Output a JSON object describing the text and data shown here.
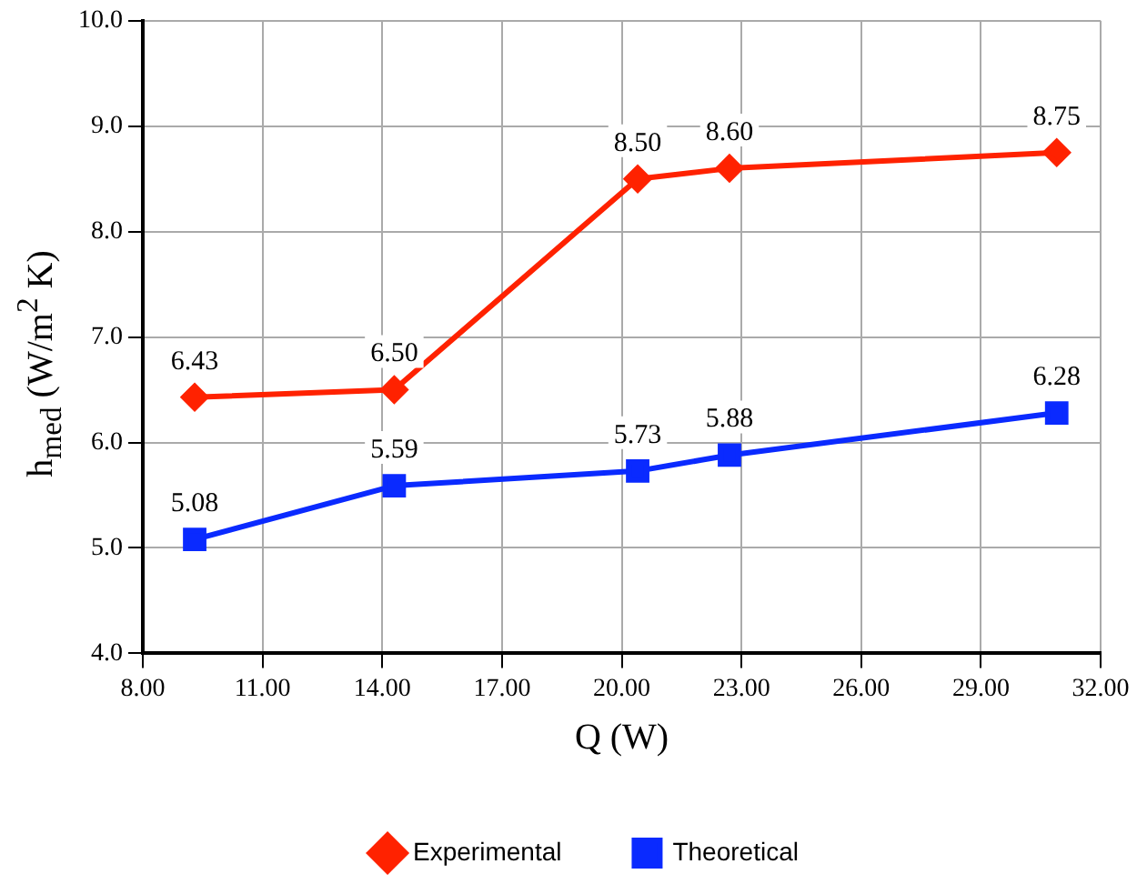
{
  "chart_data": {
    "type": "line",
    "xlabel": "Q (W)",
    "ylabel": "h$_{med}$  (W/m$^{2}$ K)",
    "x": [
      9.3,
      14.3,
      20.4,
      22.7,
      30.9
    ],
    "series": [
      {
        "name": "Experimental",
        "color": "#ff2200",
        "marker": "diamond",
        "values": [
          6.43,
          6.5,
          8.5,
          8.6,
          8.75
        ],
        "value_labels": [
          "6.43",
          "6.50",
          "8.50",
          "8.60",
          "8.75"
        ]
      },
      {
        "name": "Theoretical",
        "color": "#0a2aff",
        "marker": "square",
        "values": [
          5.08,
          5.59,
          5.73,
          5.88,
          6.28
        ],
        "value_labels": [
          "5.08",
          "5.59",
          "5.73",
          "5.88",
          "6.28"
        ]
      }
    ],
    "xlim": [
      8,
      32
    ],
    "xticks": [
      {
        "value": 8,
        "label": "8.00"
      },
      {
        "value": 11,
        "label": "11.00"
      },
      {
        "value": 14,
        "label": "14.00"
      },
      {
        "value": 17,
        "label": "17.00"
      },
      {
        "value": 20,
        "label": "20.00"
      },
      {
        "value": 23,
        "label": "23.00"
      },
      {
        "value": 26,
        "label": "26.00"
      },
      {
        "value": 29,
        "label": "29.00"
      },
      {
        "value": 32,
        "label": "32.00"
      }
    ],
    "ylim": [
      4,
      10
    ],
    "yticks": [
      {
        "value": 4,
        "label": "4.0"
      },
      {
        "value": 5,
        "label": "5.0"
      },
      {
        "value": 6,
        "label": "6.0"
      },
      {
        "value": 7,
        "label": "7.0"
      },
      {
        "value": 8,
        "label": "8.0"
      },
      {
        "value": 9,
        "label": "9.0"
      },
      {
        "value": 10,
        "label": "10.0"
      }
    ],
    "grid": true,
    "legend": "bottom",
    "line_style": "solid"
  }
}
